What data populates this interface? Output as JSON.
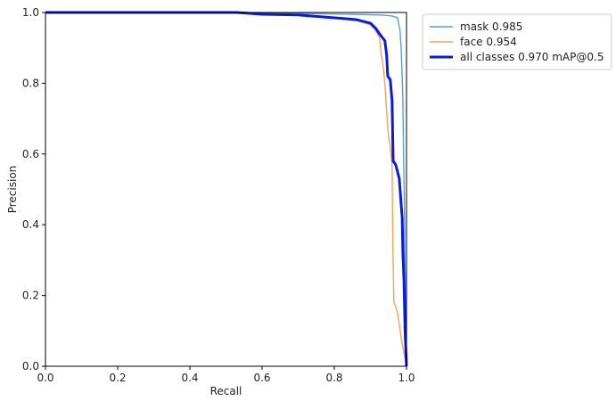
{
  "chart_data": {
    "type": "line",
    "title": "",
    "xlabel": "Recall",
    "ylabel": "Precision",
    "xlim": [
      0.0,
      1.0
    ],
    "ylim": [
      0.0,
      1.0
    ],
    "xticks": [
      "0.0",
      "0.2",
      "0.4",
      "0.6",
      "0.8",
      "1.0"
    ],
    "yticks": [
      "0.0",
      "0.2",
      "0.4",
      "0.6",
      "0.8",
      "1.0"
    ],
    "grid": false,
    "legend_position": "outside-upper-right",
    "series": [
      {
        "name": "mask 0.985",
        "color": "#5b9bd5",
        "line_style": "thin",
        "points": [
          [
            0.0,
            1.0
          ],
          [
            0.55,
            1.0
          ],
          [
            0.72,
            0.997
          ],
          [
            0.85,
            0.995
          ],
          [
            0.93,
            0.993
          ],
          [
            0.96,
            0.99
          ],
          [
            0.975,
            0.985
          ],
          [
            0.982,
            0.95
          ],
          [
            0.985,
            0.9
          ],
          [
            0.988,
            0.82
          ],
          [
            0.99,
            0.75
          ],
          [
            0.992,
            0.58
          ],
          [
            0.994,
            0.48
          ],
          [
            0.995,
            0.35
          ],
          [
            0.997,
            0.2
          ],
          [
            0.998,
            0.1
          ],
          [
            1.0,
            0.0
          ]
        ]
      },
      {
        "name": "face 0.954",
        "color": "#f5a25d",
        "line_style": "thin",
        "points": [
          [
            0.0,
            1.0
          ],
          [
            0.5,
            1.0
          ],
          [
            0.7,
            0.995
          ],
          [
            0.8,
            0.985
          ],
          [
            0.87,
            0.975
          ],
          [
            0.9,
            0.965
          ],
          [
            0.91,
            0.955
          ],
          [
            0.925,
            0.93
          ],
          [
            0.93,
            0.88
          ],
          [
            0.935,
            0.85
          ],
          [
            0.94,
            0.8
          ],
          [
            0.945,
            0.72
          ],
          [
            0.95,
            0.65
          ],
          [
            0.955,
            0.62
          ],
          [
            0.96,
            0.57
          ],
          [
            0.962,
            0.35
          ],
          [
            0.965,
            0.18
          ],
          [
            0.97,
            0.17
          ],
          [
            0.975,
            0.15
          ],
          [
            0.98,
            0.12
          ],
          [
            0.985,
            0.08
          ],
          [
            1.0,
            0.0
          ]
        ]
      },
      {
        "name": "all classes 0.970 mAP@0.5",
        "color": "#0a1be0",
        "line_style": "thick",
        "points": [
          [
            0.0,
            1.0
          ],
          [
            0.53,
            1.0
          ],
          [
            0.6,
            0.995
          ],
          [
            0.7,
            0.993
          ],
          [
            0.8,
            0.985
          ],
          [
            0.86,
            0.98
          ],
          [
            0.9,
            0.97
          ],
          [
            0.915,
            0.955
          ],
          [
            0.925,
            0.94
          ],
          [
            0.94,
            0.92
          ],
          [
            0.945,
            0.88
          ],
          [
            0.948,
            0.82
          ],
          [
            0.955,
            0.81
          ],
          [
            0.96,
            0.75
          ],
          [
            0.963,
            0.58
          ],
          [
            0.97,
            0.57
          ],
          [
            0.975,
            0.55
          ],
          [
            0.98,
            0.53
          ],
          [
            0.985,
            0.46
          ],
          [
            0.988,
            0.42
          ],
          [
            0.99,
            0.32
          ],
          [
            0.993,
            0.24
          ],
          [
            0.996,
            0.1
          ],
          [
            1.0,
            0.0
          ]
        ]
      }
    ]
  }
}
